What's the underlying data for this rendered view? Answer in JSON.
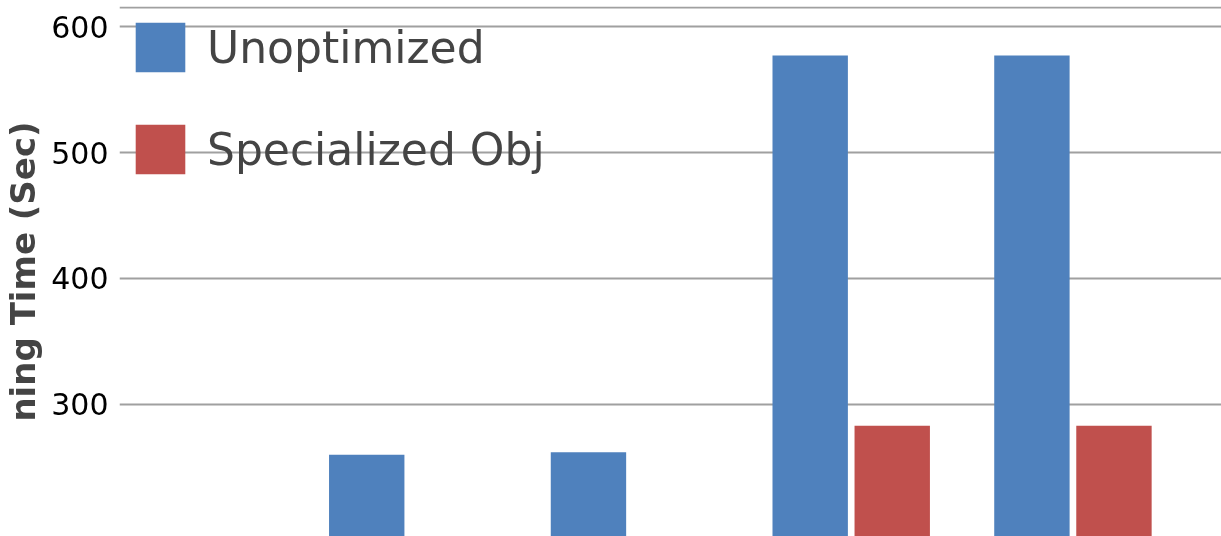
{
  "chart_data": {
    "type": "bar",
    "ylabel": "ning Time (Sec)",
    "categories": [
      null,
      null,
      null,
      null,
      null
    ],
    "series": [
      {
        "name": "Unoptimized",
        "color": "#4f81bd",
        "values": [
          null,
          260,
          262,
          577,
          577
        ]
      },
      {
        "name": "Specialized Obj",
        "color": "#c0504d",
        "values": [
          null,
          null,
          null,
          283,
          283
        ]
      }
    ],
    "ylim": [
      195,
      616
    ],
    "yticks": [
      300,
      400,
      500,
      600,
      {
        "value": 615,
        "label": null
      }
    ],
    "grid": "y",
    "legend": "top left",
    "tick_labels": "y"
  }
}
